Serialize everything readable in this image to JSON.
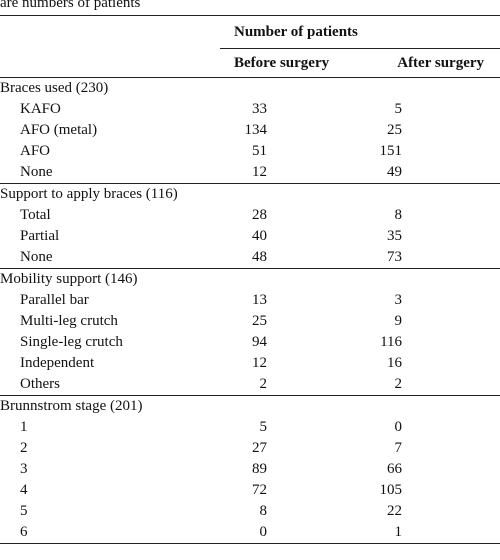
{
  "caption": "are numbers of patients",
  "table": {
    "group_header": "Number of patients",
    "columns": [
      "Before surgery",
      "After surgery"
    ],
    "sections": [
      {
        "title": "Braces used (230)",
        "rows": [
          {
            "label": "KAFO",
            "before": "33",
            "after": "5"
          },
          {
            "label": "AFO (metal)",
            "before": "134",
            "after": "25"
          },
          {
            "label": "AFO",
            "before": "51",
            "after": "151"
          },
          {
            "label": "None",
            "before": "12",
            "after": "49"
          }
        ]
      },
      {
        "title": "Support to apply braces (116)",
        "rows": [
          {
            "label": "Total",
            "before": "28",
            "after": "8"
          },
          {
            "label": "Partial",
            "before": "40",
            "after": "35"
          },
          {
            "label": "None",
            "before": "48",
            "after": "73"
          }
        ]
      },
      {
        "title": "Mobility support (146)",
        "rows": [
          {
            "label": "Parallel bar",
            "before": "13",
            "after": "3"
          },
          {
            "label": "Multi-leg crutch",
            "before": "25",
            "after": "9"
          },
          {
            "label": "Single-leg crutch",
            "before": "94",
            "after": "116"
          },
          {
            "label": "Independent",
            "before": "12",
            "after": "16"
          },
          {
            "label": "Others",
            "before": "2",
            "after": "2"
          }
        ]
      },
      {
        "title": "Brunnstrom stage (201)",
        "rows": [
          {
            "label": "1",
            "before": "5",
            "after": "0"
          },
          {
            "label": "2",
            "before": "27",
            "after": "7"
          },
          {
            "label": "3",
            "before": "89",
            "after": "66"
          },
          {
            "label": "4",
            "before": "72",
            "after": "105"
          },
          {
            "label": "5",
            "before": "8",
            "after": "22"
          },
          {
            "label": "6",
            "before": "0",
            "after": "1"
          }
        ]
      }
    ]
  }
}
